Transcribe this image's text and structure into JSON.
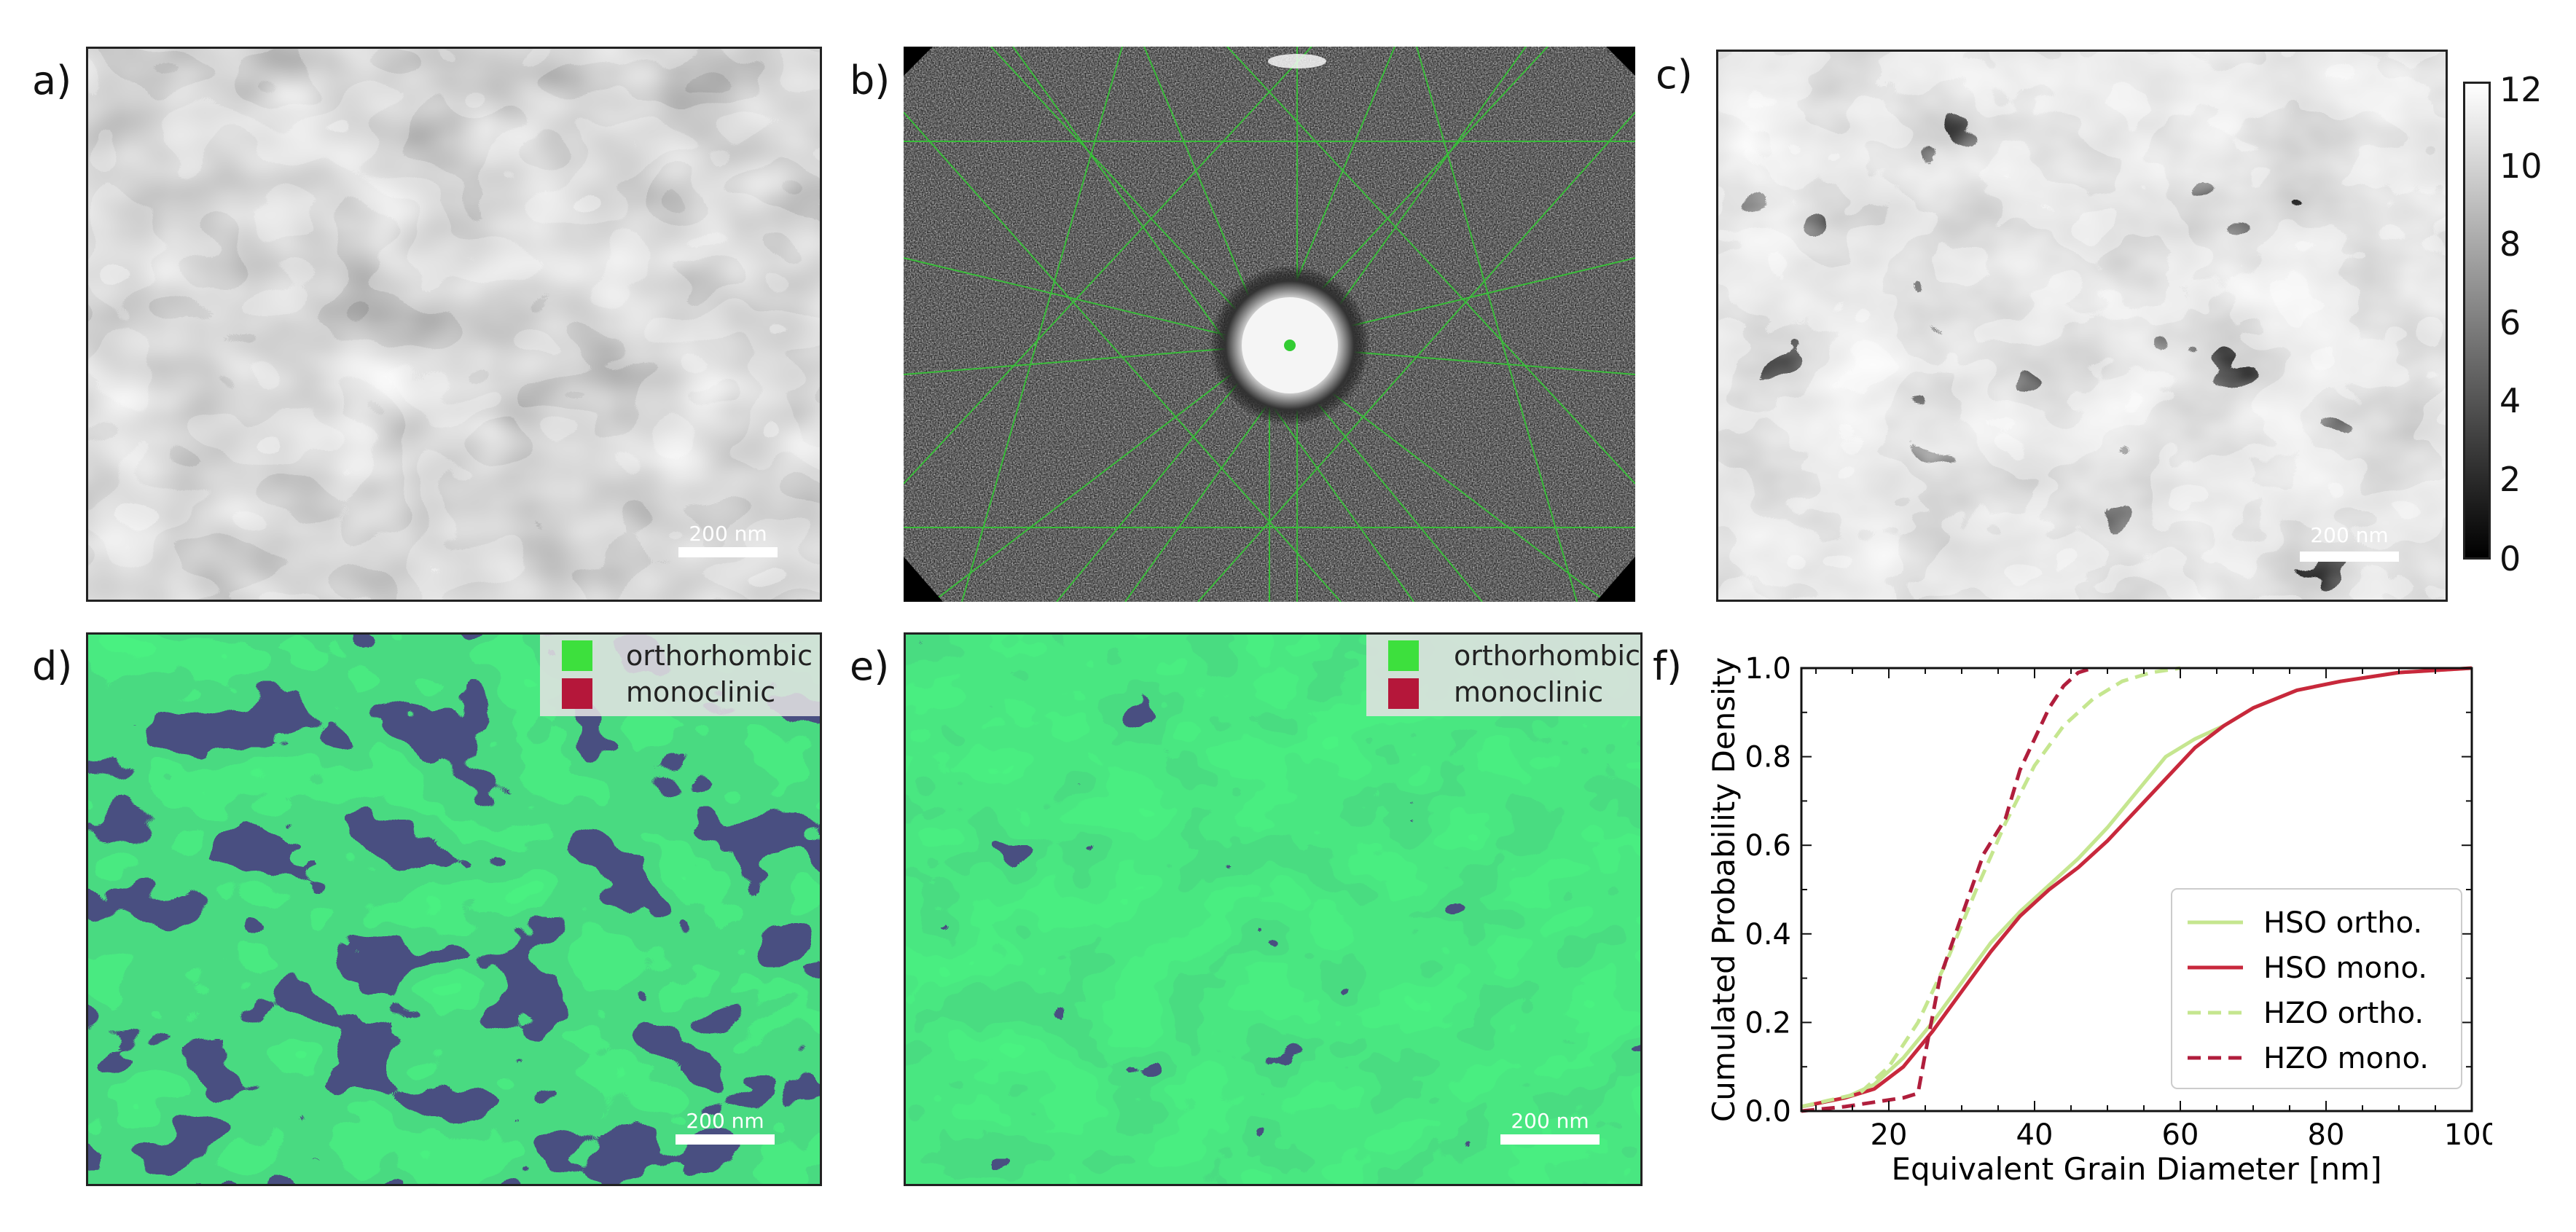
{
  "panels": {
    "a": {
      "label": "a)",
      "scalebar": "200 nm"
    },
    "b": {
      "label": "b)"
    },
    "c": {
      "label": "c)",
      "scalebar": "200 nm"
    },
    "d": {
      "label": "d)",
      "scalebar": "200 nm",
      "legend": [
        "orthorhombic",
        "monoclinic"
      ]
    },
    "e": {
      "label": "e)",
      "scalebar": "200 nm",
      "legend": [
        "orthorhombic",
        "monoclinic"
      ]
    },
    "f": {
      "label": "f)"
    }
  },
  "colorbar": {
    "ticks": [
      "12",
      "10",
      "8",
      "6",
      "4",
      "2",
      "0"
    ]
  },
  "colors": {
    "orthorhombic": "#3de03d",
    "monoclinic": "#b5173a",
    "background": "#11123a"
  },
  "chart_data": {
    "type": "line",
    "xlabel": "Equivalent Grain Diameter [nm]",
    "ylabel": "Cumulated Probability Density",
    "xlim": [
      8,
      100
    ],
    "ylim": [
      0,
      1
    ],
    "xticks": [
      20,
      40,
      60,
      80,
      100
    ],
    "yticks": [
      0.0,
      0.2,
      0.4,
      0.6,
      0.8,
      1.0
    ],
    "ytick_labels": [
      "0.0",
      "0.2",
      "0.4",
      "0.6",
      "0.8",
      "1.0"
    ],
    "legend_position": "lower-right",
    "series": [
      {
        "name": "HSO ortho.",
        "color": "#c5e68f",
        "dash": "solid",
        "x": [
          8,
          14,
          18,
          22,
          26,
          30,
          34,
          38,
          42,
          46,
          50,
          54,
          58,
          62,
          66,
          70,
          76,
          82,
          90,
          100
        ],
        "y": [
          0.01,
          0.03,
          0.06,
          0.12,
          0.2,
          0.29,
          0.38,
          0.45,
          0.51,
          0.57,
          0.64,
          0.72,
          0.8,
          0.84,
          0.87,
          0.91,
          0.95,
          0.97,
          0.99,
          1.0
        ]
      },
      {
        "name": "HSO mono.",
        "color": "#c8283c",
        "dash": "solid",
        "x": [
          8,
          14,
          18,
          22,
          26,
          30,
          34,
          38,
          42,
          46,
          50,
          54,
          58,
          62,
          66,
          70,
          76,
          82,
          90,
          100
        ],
        "y": [
          0.01,
          0.03,
          0.05,
          0.1,
          0.18,
          0.27,
          0.36,
          0.44,
          0.5,
          0.55,
          0.61,
          0.68,
          0.75,
          0.82,
          0.87,
          0.91,
          0.95,
          0.97,
          0.99,
          1.0
        ]
      },
      {
        "name": "HZO ortho.",
        "color": "#c5e68f",
        "dash": "dashed",
        "x": [
          8,
          16,
          20,
          24,
          28,
          32,
          36,
          40,
          44,
          48,
          52,
          56,
          60
        ],
        "y": [
          0.01,
          0.04,
          0.1,
          0.2,
          0.34,
          0.5,
          0.65,
          0.78,
          0.87,
          0.93,
          0.97,
          0.99,
          1.0
        ]
      },
      {
        "name": "HZO mono.",
        "color": "#b01e3c",
        "dash": "dashed",
        "x": [
          8,
          14,
          18,
          22,
          24,
          25,
          27,
          30,
          33,
          36,
          38,
          40,
          42,
          44,
          46,
          48
        ],
        "y": [
          0.0,
          0.01,
          0.02,
          0.03,
          0.04,
          0.13,
          0.3,
          0.44,
          0.58,
          0.66,
          0.77,
          0.84,
          0.91,
          0.96,
          0.99,
          1.0
        ]
      }
    ]
  }
}
